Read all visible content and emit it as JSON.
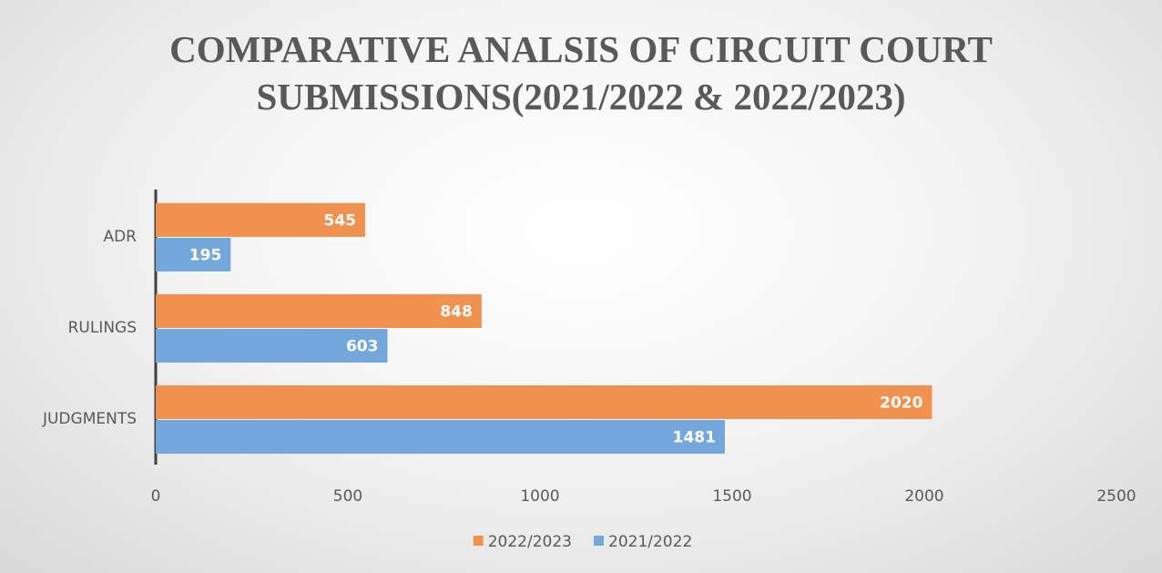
{
  "chart_data": {
    "type": "hbar",
    "title": "COMPARATIVE ANALSIS OF CIRCUIT COURT SUBMISSIONS(2021/2022 & 2022/2023)",
    "categories": [
      "ADR",
      "RULINGS",
      "JUDGMENTS"
    ],
    "series": [
      {
        "name": "2022/2023",
        "color": "#f0914f",
        "values": [
          545,
          848,
          2020
        ]
      },
      {
        "name": "2021/2022",
        "color": "#74a8dc",
        "values": [
          195,
          603,
          1481
        ]
      }
    ],
    "xlim": [
      0,
      2500
    ],
    "xticks": [
      0,
      500,
      1000,
      1500,
      2000,
      2500
    ],
    "grid": false,
    "legend": "bottom"
  }
}
